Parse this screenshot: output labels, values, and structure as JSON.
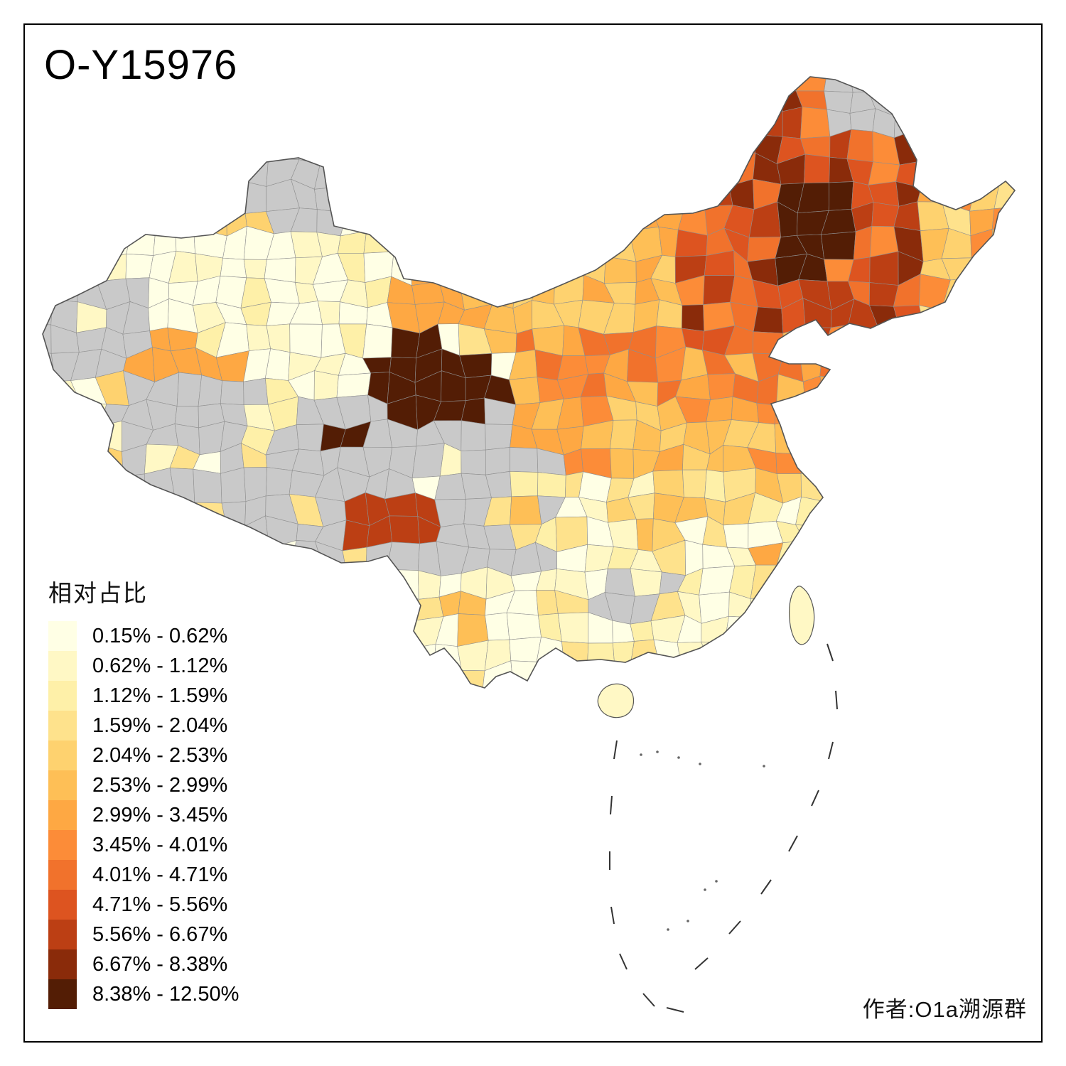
{
  "title": "O-Y15976",
  "legend": {
    "title": "相对占比",
    "items": [
      {
        "label": "0.15% - 0.62%",
        "color": "#FFFFE5"
      },
      {
        "label": "0.62% - 1.12%",
        "color": "#FFF8C5"
      },
      {
        "label": "1.12% - 1.59%",
        "color": "#FEF0A8"
      },
      {
        "label": "1.59% - 2.04%",
        "color": "#FEE28C"
      },
      {
        "label": "2.04% - 2.53%",
        "color": "#FED26F"
      },
      {
        "label": "2.53% - 2.99%",
        "color": "#FEBF56"
      },
      {
        "label": "2.99% - 3.45%",
        "color": "#FEA843"
      },
      {
        "label": "3.45% - 4.01%",
        "color": "#FC8C38"
      },
      {
        "label": "4.01% - 4.71%",
        "color": "#F1722C"
      },
      {
        "label": "4.71% - 5.56%",
        "color": "#DD5420"
      },
      {
        "label": "5.56% - 6.67%",
        "color": "#BC3F14"
      },
      {
        "label": "6.67% - 8.38%",
        "color": "#8A2B0A"
      },
      {
        "label": "8.38% - 12.50%",
        "color": "#531D05"
      }
    ]
  },
  "attribution": "作者:O1a溯源群",
  "map": {
    "no_data_color": "#C9C9C9",
    "cell_border_color": "#8F8F8F",
    "outline_color": "#555555",
    "dash_line_color": "#333333"
  }
}
